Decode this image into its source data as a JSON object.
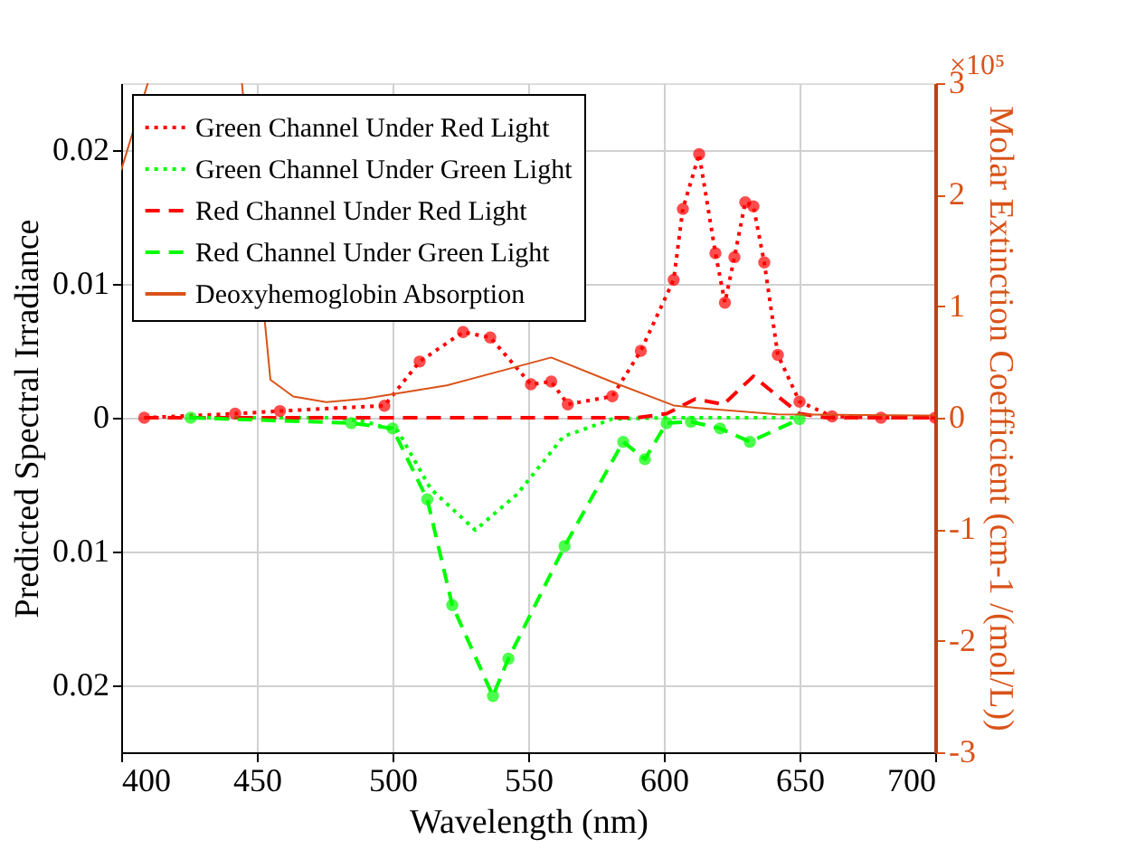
{
  "chart_data": {
    "type": "line",
    "xlabel": "Wavelength (nm)",
    "ylabel": "Predicted Spectral Irradiance",
    "y2label": "Molar Extinction Coefficient (cm-1 /(mol/L))",
    "annotations": [
      "×10⁵"
    ],
    "xlim": [
      400,
      700
    ],
    "xticks": [
      400,
      450,
      500,
      550,
      600,
      650,
      700
    ],
    "ylim": [
      -0.025,
      0.025
    ],
    "yticks": [
      {
        "value": -0.02,
        "label": "0.02"
      },
      {
        "value": -0.01,
        "label": "0.01"
      },
      0,
      0.01,
      0.02
    ],
    "y2lim": [
      -3,
      3
    ],
    "y2ticks": [
      -3,
      -2,
      -1,
      0,
      1,
      2,
      3
    ],
    "grid": true,
    "legend": "top left",
    "series": [
      {
        "name": "Green Channel Under Red Light",
        "color": "#ff0000",
        "line_style": "dotted",
        "marker": "circle",
        "x": [
          408.5,
          442,
          458.5,
          497,
          510,
          526,
          536,
          551,
          558.5,
          564.6,
          581,
          591.5,
          603.6,
          607,
          613,
          619,
          622.5,
          626,
          630,
          633,
          637,
          642,
          650,
          662,
          680,
          700
        ],
        "values": [
          0,
          0.0003,
          0.0005,
          0.0009,
          0.0042,
          0.0064,
          0.006,
          0.0025,
          0.0027,
          0.001,
          0.0016,
          0.005,
          0.0103,
          0.0156,
          0.0197,
          0.0123,
          0.0086,
          0.012,
          0.0161,
          0.0158,
          0.0116,
          0.0047,
          0.0012,
          0.0001,
          0,
          0
        ]
      },
      {
        "name": "Green Channel Under Green Light",
        "color": "#00ff00",
        "line_style": "dotted",
        "marker": "none",
        "x": [
          425,
          480,
          490,
          502,
          514,
          530.5,
          546,
          563,
          581,
          600,
          650
        ],
        "values": [
          0,
          0,
          -0.0003,
          -0.001,
          -0.0053,
          -0.0084,
          -0.0057,
          -0.0014,
          -0.0001,
          0,
          0
        ]
      },
      {
        "name": "Red Channel Under Red Light",
        "color": "#ff0000",
        "line_style": "dashed",
        "marker": "none",
        "x": [
          408.5,
          590,
          601,
          611.6,
          622,
          633,
          642,
          650,
          660,
          700
        ],
        "values": [
          0,
          0,
          0.0003,
          0.0014,
          0.001,
          0.0031,
          0.0016,
          0.0003,
          0,
          0
        ]
      },
      {
        "name": "Red Channel Under Green Light",
        "color": "#00ff00",
        "line_style": "dashed",
        "marker": "circle",
        "x": [
          425.6,
          484.8,
          500,
          512.8,
          522,
          537,
          542.7,
          563.4,
          585,
          593,
          601,
          610,
          620.7,
          631.7,
          650
        ],
        "values": [
          0,
          -0.0004,
          -0.0008,
          -0.0061,
          -0.014,
          -0.0208,
          -0.018,
          -0.0096,
          -0.0018,
          -0.0031,
          -0.0004,
          -0.0003,
          -0.0008,
          -0.0018,
          -0.0001
        ]
      },
      {
        "name": "Deoxyhemoglobin Absorption",
        "color": "#d95319",
        "line_style": "solid",
        "marker": "none",
        "axis": "y2",
        "x": [
          400,
          409.8,
          425,
          444.5,
          455,
          463.4,
          475.6,
          489.6,
          520,
          558.5,
          581,
          603.6,
          611.6,
          642,
          700
        ],
        "values": [
          2.22,
          3,
          null,
          3,
          0.34,
          0.19,
          0.14,
          0.17,
          0.29,
          0.54,
          0.32,
          0.11,
          0.09,
          0.03,
          0.02
        ]
      }
    ]
  }
}
